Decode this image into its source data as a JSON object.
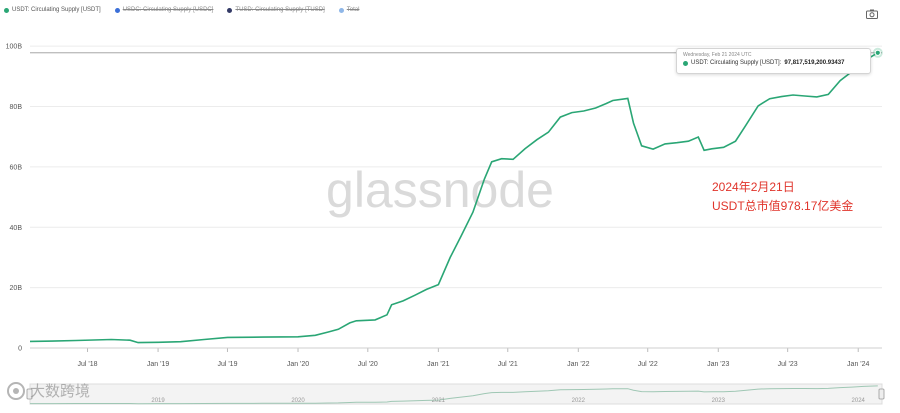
{
  "legend": [
    {
      "label": "USDT: Circulating Supply [USDT]",
      "color": "#2aa675",
      "active": true
    },
    {
      "label": "USDC: Circulating Supply [USDC]",
      "color": "#3b6fd8",
      "active": false
    },
    {
      "label": "TUSD: Circulating Supply [TUSD]",
      "color": "#333a66",
      "active": false
    },
    {
      "label": "Total",
      "color": "#8fb7e8",
      "active": false
    }
  ],
  "tooltip": {
    "date": "Wednesday, Feb 21 2024 UTC",
    "series": "USDT: Circulating Supply [USDT]:",
    "value": "97,817,519,200.93437"
  },
  "annotation": {
    "line1": "2024年2月21日",
    "line2": "USDT总市值978.17亿美金"
  },
  "watermark": "glassnode",
  "brand_watermark": "大数跨境",
  "navigator_years": [
    "2019",
    "2020",
    "2021",
    "2022",
    "2023",
    "2024"
  ],
  "colors": {
    "line": "#2aa675",
    "grid": "#ececec",
    "axis_text": "#555555"
  },
  "chart_data": {
    "type": "line",
    "x_tick_labels": [
      "Jul '18",
      "Jan '19",
      "Jul '19",
      "Jan '20",
      "Jul '20",
      "Jan '21",
      "Jul '21",
      "Jan '22",
      "Jul '22",
      "Jan '23",
      "Jul '23",
      "Jan '24"
    ],
    "y_tick_labels": [
      "0",
      "20B",
      "40B",
      "60B",
      "80B",
      "100B"
    ],
    "ylim": [
      0,
      108
    ],
    "y_unit": "B",
    "grid": true,
    "reference_line": 97.8,
    "series": [
      {
        "name": "USDT: Circulating Supply [USDT]",
        "points": [
          [
            "2018-02-01",
            2.2
          ],
          [
            "2018-04-01",
            2.3
          ],
          [
            "2018-06-01",
            2.5
          ],
          [
            "2018-09-01",
            2.8
          ],
          [
            "2018-10-20",
            2.6
          ],
          [
            "2018-11-10",
            1.8
          ],
          [
            "2019-01-01",
            1.9
          ],
          [
            "2019-03-01",
            2.1
          ],
          [
            "2019-05-01",
            2.8
          ],
          [
            "2019-07-01",
            3.5
          ],
          [
            "2019-10-01",
            3.6
          ],
          [
            "2020-01-01",
            3.7
          ],
          [
            "2020-02-15",
            4.2
          ],
          [
            "2020-03-20",
            5.3
          ],
          [
            "2020-04-15",
            6.2
          ],
          [
            "2020-05-15",
            8.3
          ],
          [
            "2020-06-01",
            9.0
          ],
          [
            "2020-07-20",
            9.3
          ],
          [
            "2020-08-20",
            11.0
          ],
          [
            "2020-09-01",
            14.3
          ],
          [
            "2020-10-01",
            15.6
          ],
          [
            "2020-11-01",
            17.5
          ],
          [
            "2020-12-01",
            19.4
          ],
          [
            "2021-01-01",
            21.0
          ],
          [
            "2021-02-01",
            30.0
          ],
          [
            "2021-03-01",
            37.0
          ],
          [
            "2021-04-01",
            45.0
          ],
          [
            "2021-05-01",
            56.0
          ],
          [
            "2021-05-20",
            61.7
          ],
          [
            "2021-06-15",
            62.7
          ],
          [
            "2021-07-15",
            62.5
          ],
          [
            "2021-08-15",
            66.0
          ],
          [
            "2021-09-15",
            69.0
          ],
          [
            "2021-10-15",
            71.5
          ],
          [
            "2021-11-15",
            76.5
          ],
          [
            "2021-12-15",
            78.0
          ],
          [
            "2022-01-15",
            78.5
          ],
          [
            "2022-02-15",
            79.5
          ],
          [
            "2022-03-15",
            81.0
          ],
          [
            "2022-04-01",
            82.0
          ],
          [
            "2022-05-10",
            82.7
          ],
          [
            "2022-05-25",
            74.5
          ],
          [
            "2022-06-15",
            67.0
          ],
          [
            "2022-07-15",
            65.9
          ],
          [
            "2022-08-15",
            67.6
          ],
          [
            "2022-09-15",
            68.0
          ],
          [
            "2022-10-15",
            68.5
          ],
          [
            "2022-11-10",
            69.9
          ],
          [
            "2022-11-25",
            65.5
          ],
          [
            "2022-12-15",
            66.0
          ],
          [
            "2023-01-15",
            66.5
          ],
          [
            "2023-02-15",
            68.5
          ],
          [
            "2023-03-15",
            74.0
          ],
          [
            "2023-04-15",
            80.2
          ],
          [
            "2023-05-15",
            82.6
          ],
          [
            "2023-06-15",
            83.3
          ],
          [
            "2023-07-15",
            83.8
          ],
          [
            "2023-08-15",
            83.5
          ],
          [
            "2023-09-15",
            83.2
          ],
          [
            "2023-10-15",
            84.0
          ],
          [
            "2023-11-15",
            88.6
          ],
          [
            "2023-12-15",
            91.5
          ],
          [
            "2024-01-15",
            95.0
          ],
          [
            "2024-02-21",
            97.8
          ]
        ]
      }
    ]
  }
}
